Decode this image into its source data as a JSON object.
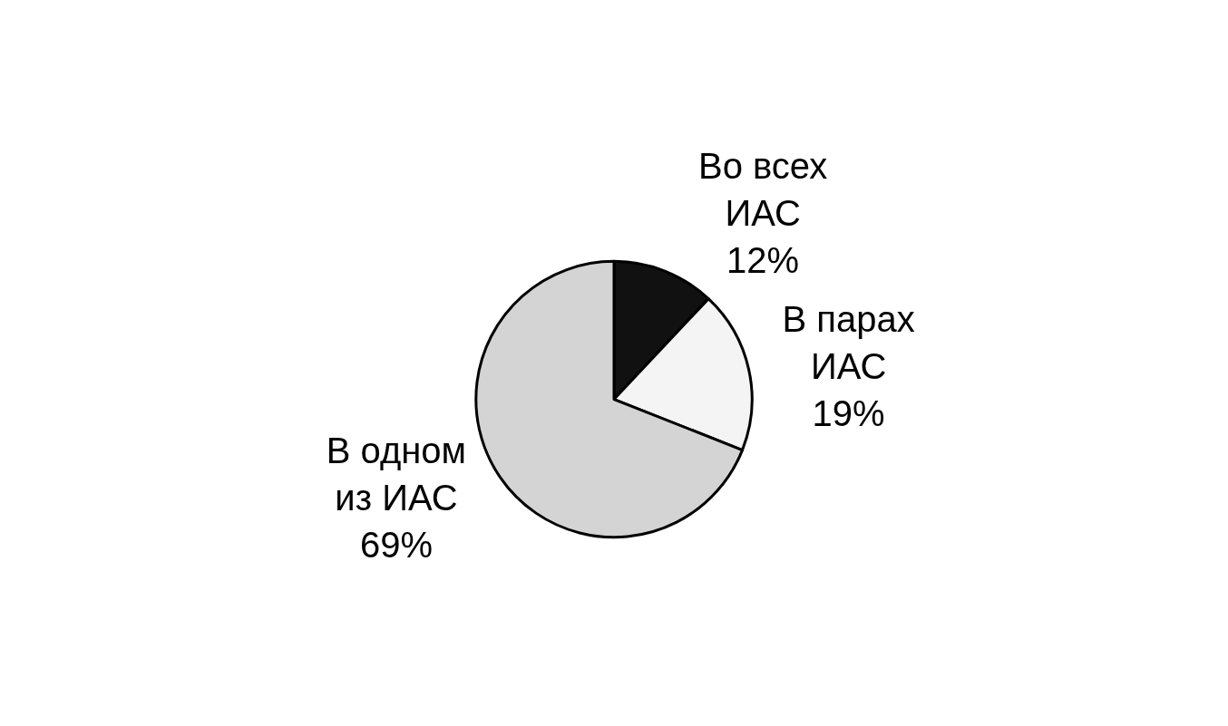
{
  "chart_data": {
    "type": "pie",
    "categories": [
      "Во всех\nИАС",
      "В парах\nИАС",
      "В одном\nиз ИАС"
    ],
    "values": [
      12,
      19,
      69
    ],
    "value_labels": [
      "12%",
      "19%",
      "69%"
    ],
    "colors": [
      "#111111",
      "#f4f4f4",
      "#d4d4d4"
    ],
    "legend": false
  }
}
